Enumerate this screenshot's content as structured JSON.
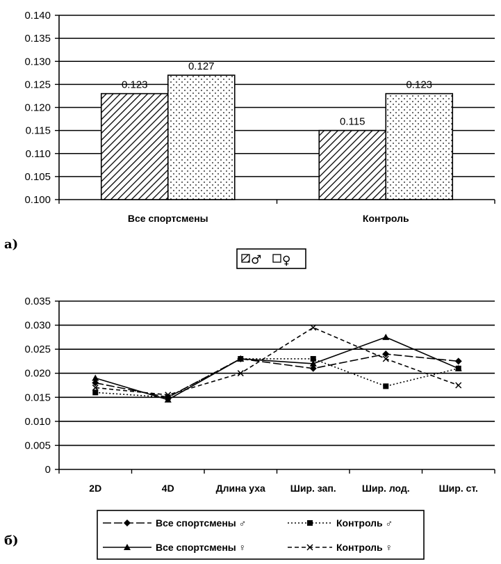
{
  "chart_data": [
    {
      "type": "bar",
      "panel_label": "а)",
      "categories": [
        "Все спортсмены",
        "Контроль"
      ],
      "series": [
        {
          "name": "♂",
          "values": [
            0.123,
            0.115
          ],
          "pattern": "hatch"
        },
        {
          "name": "♀",
          "values": [
            0.127,
            0.123
          ],
          "pattern": "dots"
        }
      ],
      "data_labels": [
        [
          "0.123",
          "0.115"
        ],
        [
          "0.127",
          "0.123"
        ]
      ],
      "ylim": [
        0.1,
        0.14
      ],
      "yticks": [
        "0.100",
        "0.105",
        "0.110",
        "0.115",
        "0.120",
        "0.125",
        "0.130",
        "0.135",
        "0.140"
      ],
      "grid": true,
      "legend_position": "bottom"
    },
    {
      "type": "line",
      "panel_label": "б)",
      "categories": [
        "2D",
        "4D",
        "Длина уха",
        "Шир. зап.",
        "Шир. лод.",
        "Шир. ст."
      ],
      "series": [
        {
          "name": "Все спортсмены ♂",
          "values": [
            0.018,
            0.015,
            0.023,
            0.021,
            0.024,
            0.0225
          ],
          "marker": "diamond",
          "dash": "long-dash"
        },
        {
          "name": "Контроль ♂",
          "values": [
            0.016,
            0.015,
            0.023,
            0.023,
            0.0173,
            0.021
          ],
          "marker": "square",
          "dash": "dotted"
        },
        {
          "name": "Все спортсмены ♀",
          "values": [
            0.019,
            0.0145,
            0.023,
            0.022,
            0.0275,
            0.021
          ],
          "marker": "triangle",
          "dash": "solid"
        },
        {
          "name": "Контроль ♀",
          "values": [
            0.017,
            0.0155,
            0.02,
            0.0295,
            0.023,
            0.0175
          ],
          "marker": "x",
          "dash": "dashed"
        }
      ],
      "ylim": [
        0,
        0.035
      ],
      "yticks": [
        "0",
        "0.005",
        "0.010",
        "0.015",
        "0.020",
        "0.025",
        "0.030",
        "0.035"
      ],
      "grid": true,
      "legend_position": "bottom"
    }
  ]
}
